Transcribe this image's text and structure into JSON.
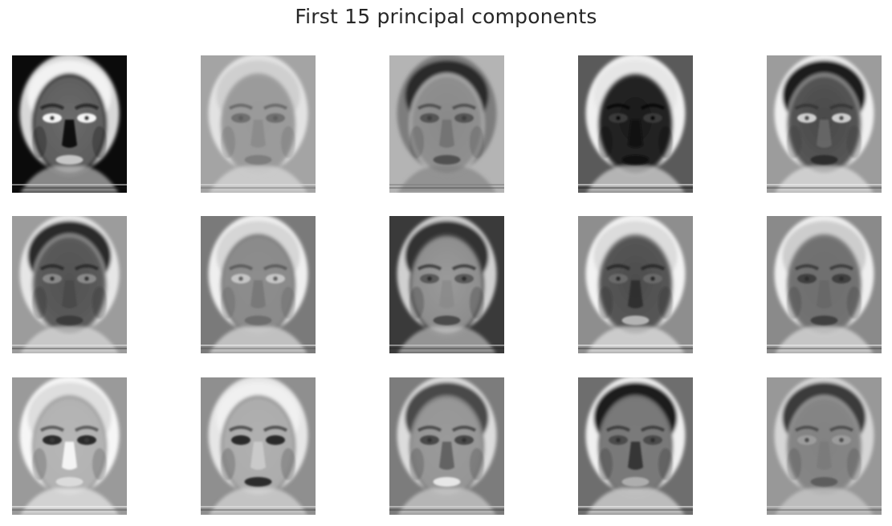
{
  "figure": {
    "title": "First 15 principal components"
  },
  "components": [
    {
      "index": 1,
      "bg": "#0b0b0b",
      "skin": "#6b6b6b",
      "hair": "#f2f2f2",
      "halo": "#d8d8d8",
      "eyes": "#f5f5f5",
      "nose": "#050505",
      "mouth": "#d0d0d0",
      "detail": "#111111"
    },
    {
      "index": 2,
      "bg": "#a4a4a4",
      "skin": "#9a9a9a",
      "hair": "#cfcfcf",
      "halo": "#e2e2e2",
      "eyes": "#6f6f6f",
      "nose": "#8a8a8a",
      "mouth": "#7a7a7a",
      "detail": "#5a5a5a"
    },
    {
      "index": 3,
      "bg": "#b4b4b4",
      "skin": "#8a8a8a",
      "hair": "#2b2b2b",
      "halo": "#7d7d7d",
      "eyes": "#555555",
      "nose": "#707070",
      "mouth": "#4a4a4a",
      "detail": "#3a3a3a"
    },
    {
      "index": 4,
      "bg": "#5a5a5a",
      "skin": "#1c1c1c",
      "hair": "#e6e6e6",
      "halo": "#f0f0f0",
      "eyes": "#3a3a3a",
      "nose": "#0e0e0e",
      "mouth": "#101010",
      "detail": "#000000"
    },
    {
      "index": 5,
      "bg": "#9c9c9c",
      "skin": "#4a4a4a",
      "hair": "#1a1a1a",
      "halo": "#f0f0f0",
      "eyes": "#cfcfcf",
      "nose": "#6a6a6a",
      "mouth": "#2a2a2a",
      "detail": "#2f2f2f"
    },
    {
      "index": 6,
      "bg": "#9c9c9c",
      "skin": "#525252",
      "hair": "#2a2a2a",
      "halo": "#e6e6e6",
      "eyes": "#8a8a8a",
      "nose": "#484848",
      "mouth": "#363636",
      "detail": "#1f1f1f"
    },
    {
      "index": 7,
      "bg": "#7a7a7a",
      "skin": "#8d8d8d",
      "hair": "#d6d6d6",
      "halo": "#efefef",
      "eyes": "#c6c6c6",
      "nose": "#767676",
      "mouth": "#6a6a6a",
      "detail": "#4b4b4b"
    },
    {
      "index": 8,
      "bg": "#3a3a3a",
      "skin": "#9a9a9a",
      "hair": "#303030",
      "halo": "#d0d0d0",
      "eyes": "#5a5a5a",
      "nose": "#8a8a8a",
      "mouth": "#444444",
      "detail": "#222222"
    },
    {
      "index": 9,
      "bg": "#8e8e8e",
      "skin": "#4e4e4e",
      "hair": "#dcdcdc",
      "halo": "#f3f3f3",
      "eyes": "#6a6a6a",
      "nose": "#2c2c2c",
      "mouth": "#bfbfbf",
      "detail": "#1c1c1c"
    },
    {
      "index": 10,
      "bg": "#8a8a8a",
      "skin": "#6f6f6f",
      "hair": "#cdcdcd",
      "halo": "#efefef",
      "eyes": "#3f3f3f",
      "nose": "#666666",
      "mouth": "#3a3a3a",
      "detail": "#2a2a2a"
    },
    {
      "index": 11,
      "bg": "#9a9a9a",
      "skin": "#b6b6b6",
      "hair": "#dedede",
      "halo": "#f6f6f6",
      "eyes": "#2c2c2c",
      "nose": "#ffffff",
      "mouth": "#e0e0e0",
      "detail": "#3c3c3c"
    },
    {
      "index": 12,
      "bg": "#8f8f8f",
      "skin": "#b0b0b0",
      "hair": "#f0f0f0",
      "halo": "#e6e6e6",
      "eyes": "#2a2a2a",
      "nose": "#cfcfcf",
      "mouth": "#1e1e1e",
      "detail": "#2c2c2c"
    },
    {
      "index": 13,
      "bg": "#7c7c7c",
      "skin": "#9a9a9a",
      "hair": "#4a4a4a",
      "halo": "#dcdcdc",
      "eyes": "#4a4a4a",
      "nose": "#5a5a5a",
      "mouth": "#f0f0f0",
      "detail": "#2c2c2c"
    },
    {
      "index": 14,
      "bg": "#6e6e6e",
      "skin": "#7a7a7a",
      "hair": "#1e1e1e",
      "halo": "#f0f0f0",
      "eyes": "#4c4c4c",
      "nose": "#2a2a2a",
      "mouth": "#b4b4b4",
      "detail": "#262626"
    },
    {
      "index": 15,
      "bg": "#989898",
      "skin": "#828282",
      "hair": "#3a3a3a",
      "halo": "#d6d6d6",
      "eyes": "#9c9c9c",
      "nose": "#7a7a7a",
      "mouth": "#5a5a5a",
      "detail": "#3a3a3a"
    }
  ]
}
